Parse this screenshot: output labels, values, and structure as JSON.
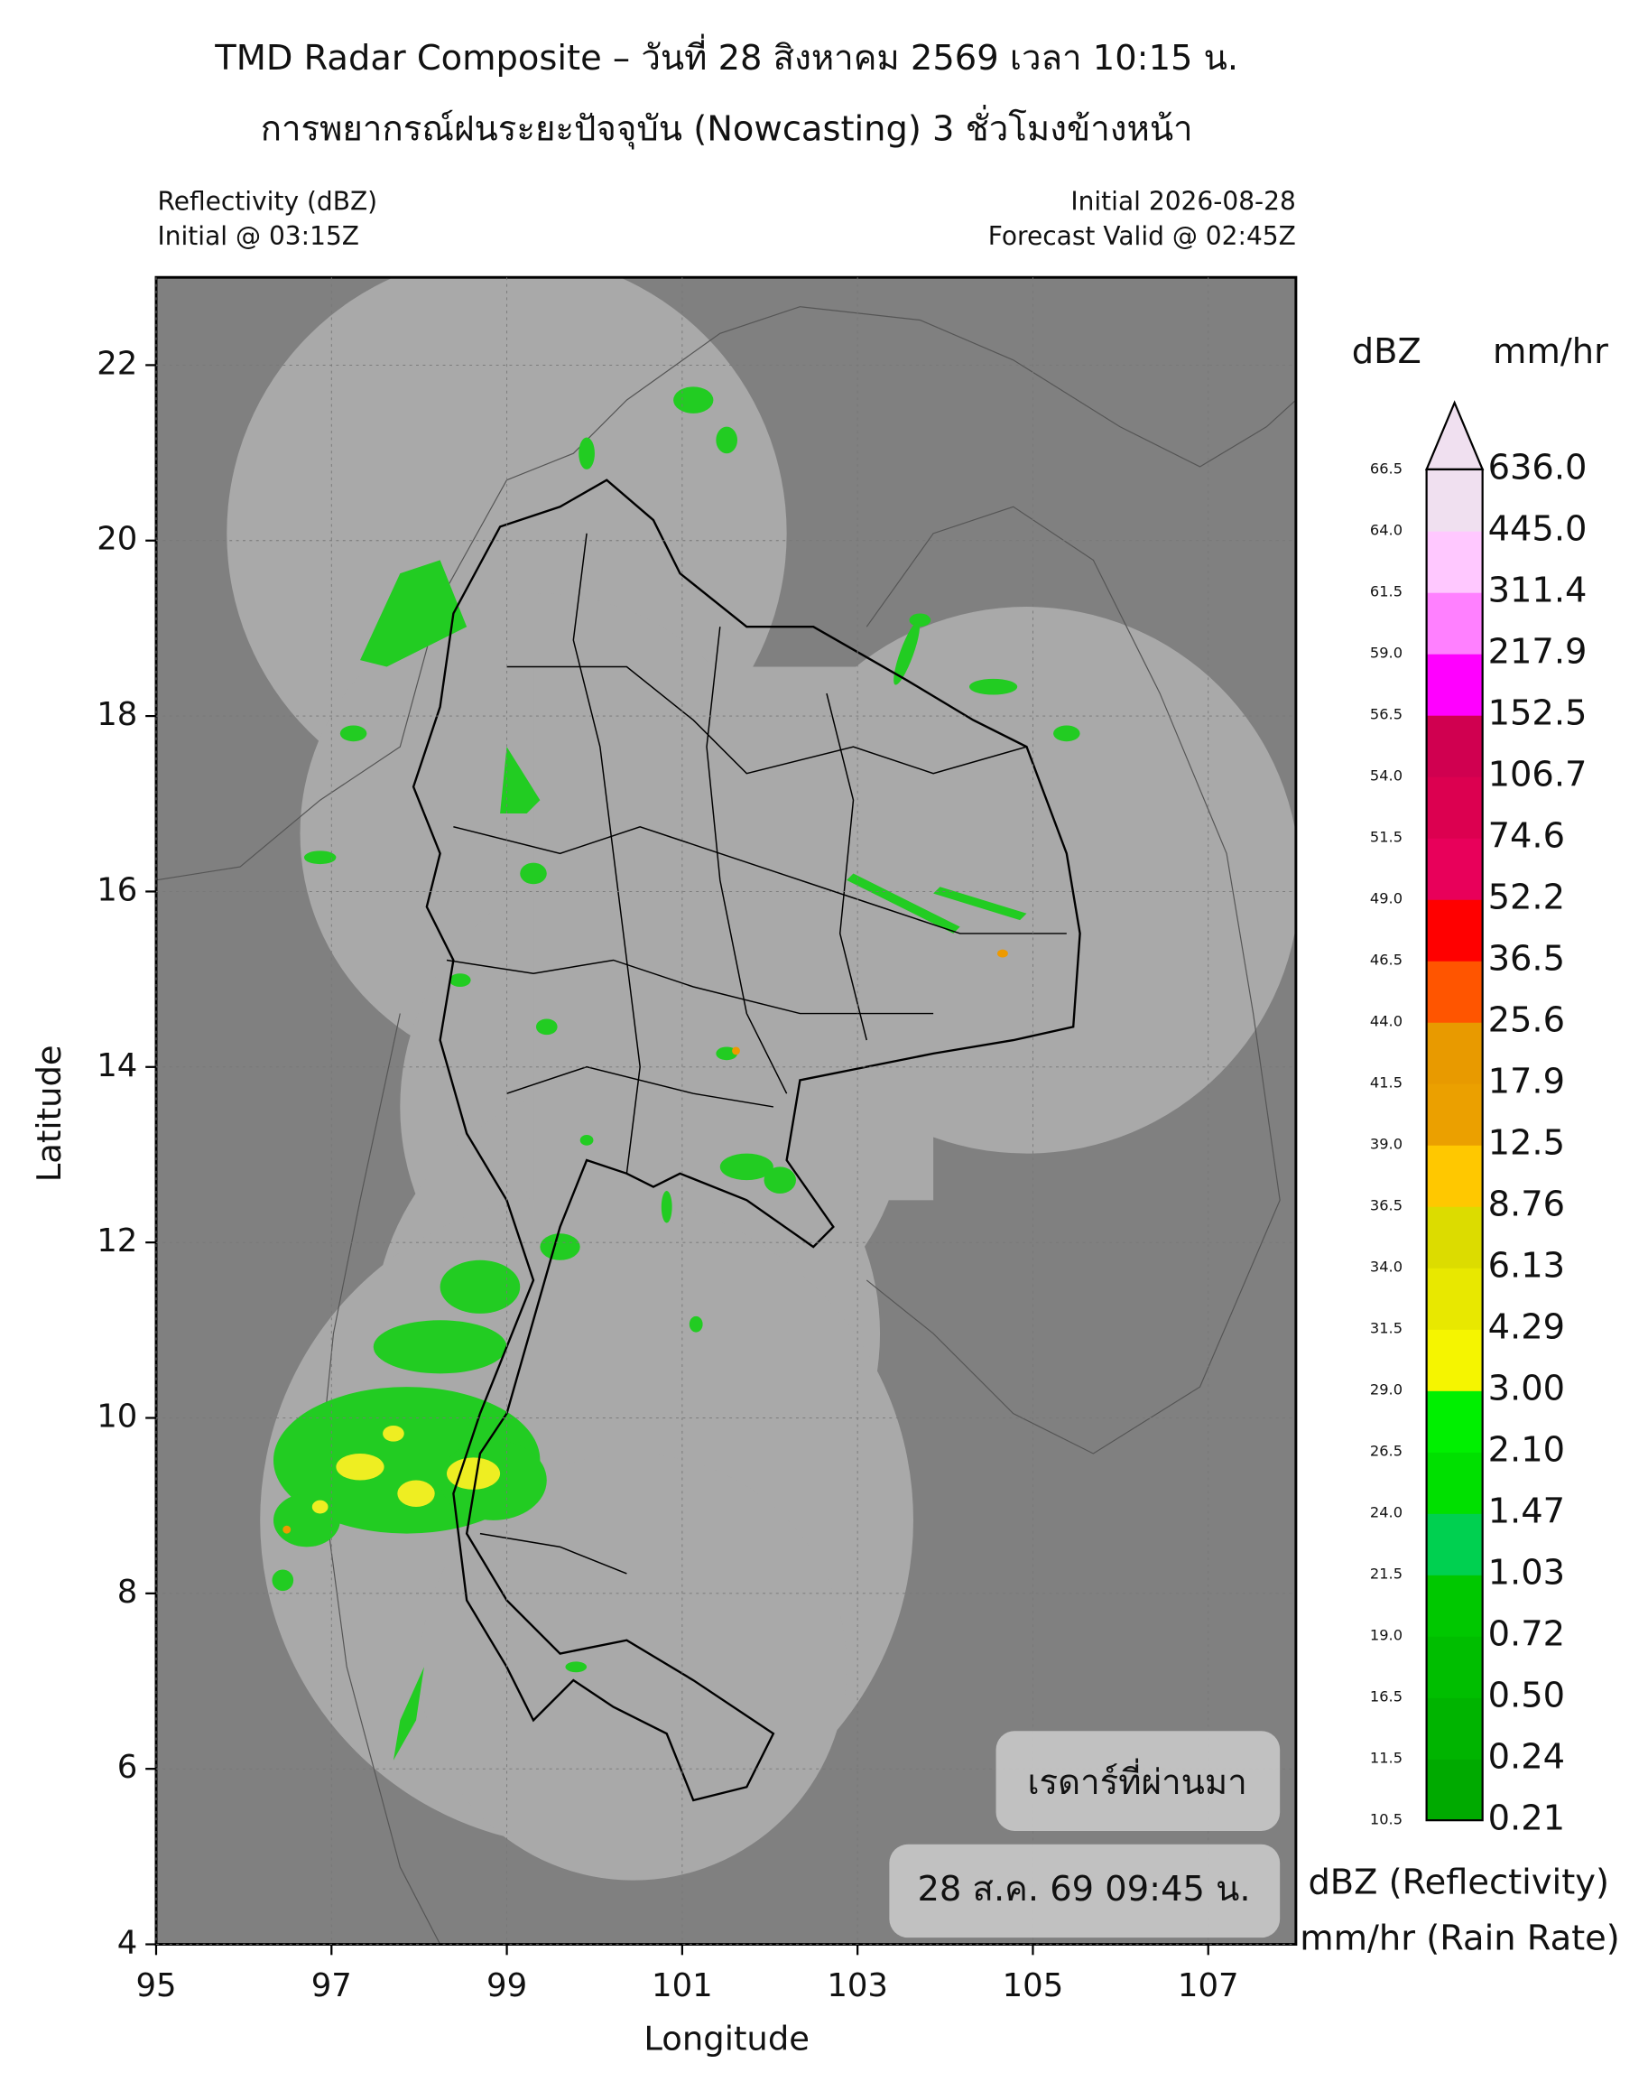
{
  "header": {
    "title": "TMD Radar Composite – วันที่ 28 สิงหาคม 2569 เวลา 10:15 น.",
    "subtitle": "การพยากรณ์ฝนระยะปัจจุบัน (Nowcasting) 3 ชั่วโมงข้างหน้า",
    "left": [
      "Reflectivity (dBZ)",
      "Initial @ 03:15Z"
    ],
    "right": [
      "Initial 2026-08-28",
      "Forecast Valid @ 02:45Z"
    ]
  },
  "axes": {
    "xlabel": "Longitude",
    "ylabel": "Latitude",
    "xlim": [
      95,
      108
    ],
    "ylim": [
      4,
      23
    ],
    "xticks": [
      95,
      97,
      99,
      101,
      103,
      105,
      107
    ],
    "yticks": [
      4,
      6,
      8,
      10,
      12,
      14,
      16,
      18,
      20,
      22
    ]
  },
  "colorbar": {
    "dbz_title": "dBZ",
    "rain_title": "mm/hr",
    "dbz": [
      "10.5",
      "11.5",
      "16.5",
      "19.0",
      "21.5",
      "24.0",
      "26.5",
      "29.0",
      "31.5",
      "34.0",
      "36.5",
      "39.0",
      "41.5",
      "44.0",
      "46.5",
      "49.0",
      "51.5",
      "54.0",
      "56.5",
      "59.0",
      "61.5",
      "64.0",
      "66.5"
    ],
    "rain": [
      "0.21",
      "0.24",
      "0.50",
      "0.72",
      "1.03",
      "1.47",
      "2.10",
      "3.00",
      "4.29",
      "6.13",
      "8.76",
      "12.5",
      "17.9",
      "25.6",
      "36.5",
      "52.2",
      "74.6",
      "106.7",
      "152.5",
      "217.9",
      "311.4",
      "445.0",
      "636.0"
    ],
    "colors": [
      "#00aa00",
      "#00b400",
      "#00be00",
      "#00c800",
      "#00d050",
      "#00e000",
      "#00f000",
      "#f5f500",
      "#e8e800",
      "#dcdc00",
      "#ffc800",
      "#eba000",
      "#e89a00",
      "#ff5500",
      "#ff0000",
      "#e8005a",
      "#dc0050",
      "#d00050",
      "#ff00ff",
      "#ff80ff",
      "#ffc8ff",
      "#f0e0f0"
    ],
    "extend_color": "#f0e0f0",
    "legend": [
      "dBZ (Reflectivity)",
      "mm/hr (Rain Rate)"
    ]
  },
  "overlays": {
    "label": "เรดาร์ที่ผ่านมา",
    "time": "28 ส.ค. 69 09:45 น."
  }
}
